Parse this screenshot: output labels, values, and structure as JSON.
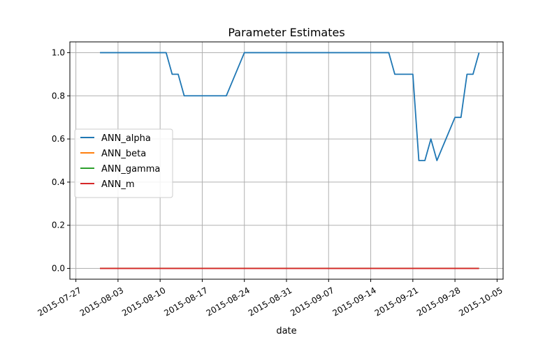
{
  "chart_data": {
    "type": "line",
    "title": "Parameter Estimates",
    "xlabel": "date",
    "ylabel": "",
    "xlim": [
      "2015-07-26",
      "2015-10-06"
    ],
    "ylim": [
      -0.05,
      1.05
    ],
    "grid": true,
    "legend_position": "center-left",
    "x_ticks": [
      "2015-07-27",
      "2015-08-03",
      "2015-08-10",
      "2015-08-17",
      "2015-08-24",
      "2015-08-31",
      "2015-09-07",
      "2015-09-14",
      "2015-09-21",
      "2015-09-28",
      "2015-10-05"
    ],
    "y_ticks": [
      "0.0",
      "0.2",
      "0.4",
      "0.6",
      "0.8",
      "1.0"
    ],
    "series": [
      {
        "name": "ANN_alpha",
        "color": "#1f77b4",
        "points": [
          [
            "2015-07-31",
            1.0
          ],
          [
            "2015-08-11",
            1.0
          ],
          [
            "2015-08-12",
            0.9
          ],
          [
            "2015-08-13",
            0.9
          ],
          [
            "2015-08-14",
            0.8
          ],
          [
            "2015-08-21",
            0.8
          ],
          [
            "2015-08-24",
            1.0
          ],
          [
            "2015-09-17",
            1.0
          ],
          [
            "2015-09-18",
            0.9
          ],
          [
            "2015-09-21",
            0.9
          ],
          [
            "2015-09-22",
            0.5
          ],
          [
            "2015-09-23",
            0.5
          ],
          [
            "2015-09-24",
            0.6
          ],
          [
            "2015-09-25",
            0.5
          ],
          [
            "2015-09-28",
            0.7
          ],
          [
            "2015-09-29",
            0.7
          ],
          [
            "2015-09-30",
            0.9
          ],
          [
            "2015-10-01",
            0.9
          ],
          [
            "2015-10-02",
            1.0
          ]
        ]
      },
      {
        "name": "ANN_beta",
        "color": "#ff7f0e",
        "points": [
          [
            "2015-07-31",
            0.0
          ],
          [
            "2015-10-02",
            0.0
          ]
        ]
      },
      {
        "name": "ANN_gamma",
        "color": "#2ca02c",
        "points": [
          [
            "2015-07-31",
            0.0
          ],
          [
            "2015-10-02",
            0.0
          ]
        ]
      },
      {
        "name": "ANN_m",
        "color": "#d62728",
        "points": [
          [
            "2015-07-31",
            0.0
          ],
          [
            "2015-10-02",
            0.0
          ]
        ]
      }
    ]
  }
}
